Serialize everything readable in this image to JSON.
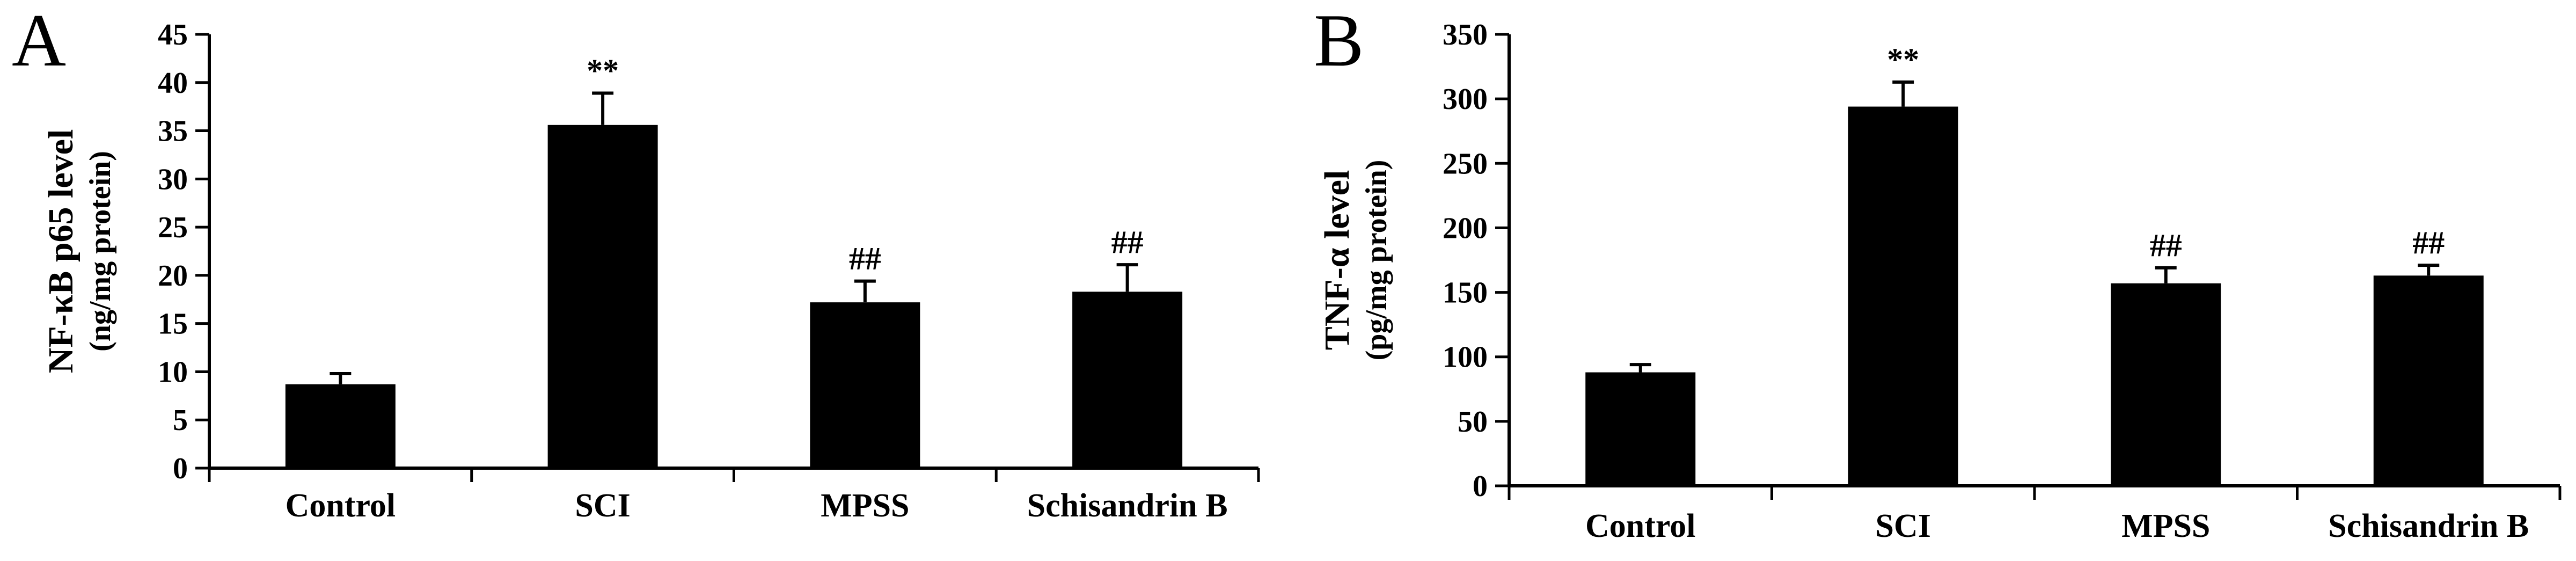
{
  "chart_data": [
    {
      "type": "bar",
      "panel_label": "A",
      "categories": [
        "Control",
        "SCI",
        "MPSS",
        "Schisandrin B"
      ],
      "values": [
        8.7,
        35.6,
        17.2,
        18.3
      ],
      "errors": [
        1.1,
        3.3,
        2.2,
        2.8
      ],
      "annotations": [
        "",
        "**",
        "##",
        "##"
      ],
      "ylabel": "NF-κB p65 level",
      "ylabel_unit": "(ng/mg protein)",
      "ylim": [
        0,
        45
      ],
      "yticks": [
        0,
        5,
        10,
        15,
        20,
        25,
        30,
        35,
        40,
        45
      ],
      "bar_color": "#000000",
      "grid": false
    },
    {
      "type": "bar",
      "panel_label": "B",
      "categories": [
        "Control",
        "SCI",
        "MPSS",
        "Schisandrin B"
      ],
      "values": [
        88,
        294,
        157,
        163
      ],
      "errors": [
        6,
        19,
        12,
        8
      ],
      "annotations": [
        "",
        "**",
        "##",
        "##"
      ],
      "ylabel": "TNF-α level",
      "ylabel_unit": "(pg/mg protein)",
      "ylim": [
        0,
        350
      ],
      "yticks": [
        0,
        50,
        100,
        150,
        200,
        250,
        300,
        350
      ],
      "bar_color": "#000000",
      "grid": false
    }
  ]
}
